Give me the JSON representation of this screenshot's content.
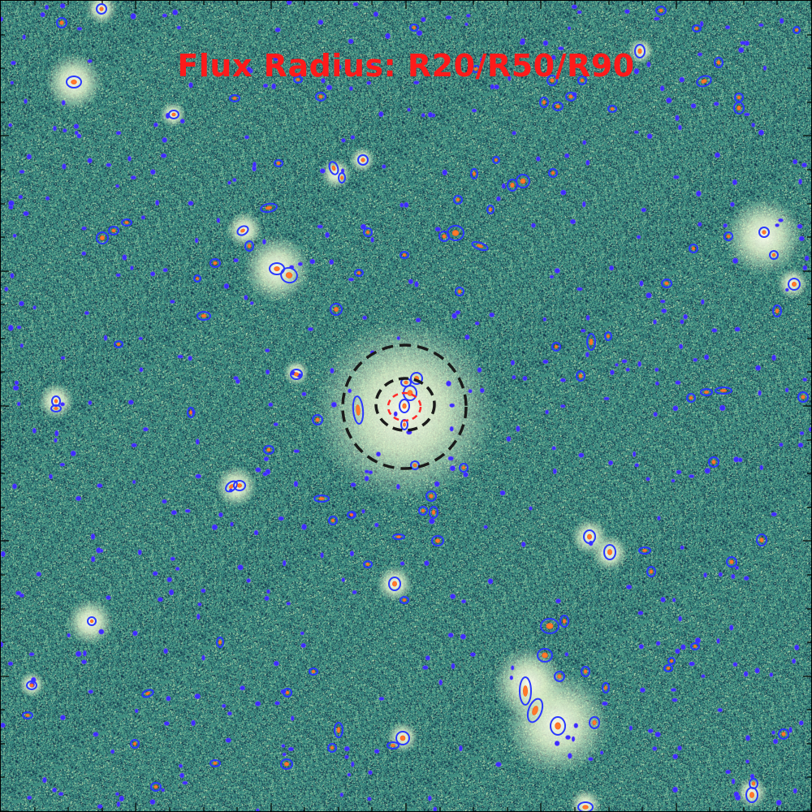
{
  "title": "Flux Radius: R20/R50/R90",
  "colors": {
    "background": "#3a8584",
    "source_ellipse": "#2030ff",
    "source_core": "#ff7a2a",
    "target_inner": "#ff2a2a",
    "target_aperture": "#1a1a1a",
    "title": "#ff1a1a"
  }
}
